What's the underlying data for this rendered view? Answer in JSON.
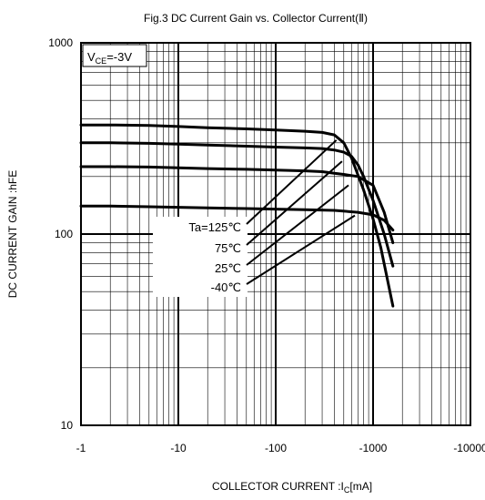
{
  "chart_data": {
    "type": "line",
    "title": "Fig.3 DC Current Gain vs. Collector  Current(Ⅱ)",
    "xlabel": {
      "main": "COLLECTOR CURRENT :I",
      "sub": "C",
      "unit": "[mA]"
    },
    "ylabel": "DC CURRENT GAIN :hFE",
    "x_scale": "log",
    "y_scale": "log",
    "xlim": [
      -1,
      -10000
    ],
    "ylim": [
      10,
      1000
    ],
    "grid": true,
    "x_ticks": [
      {
        "value": -1,
        "label": "-1"
      },
      {
        "value": -10,
        "label": "-10"
      },
      {
        "value": -100,
        "label": "-100"
      },
      {
        "value": -1000,
        "label": "-1000"
      },
      {
        "value": -10000,
        "label": "-10000"
      }
    ],
    "y_ticks": [
      {
        "value": 10,
        "label": "10"
      },
      {
        "value": 100,
        "label": "100"
      },
      {
        "value": 1000,
        "label": "1000"
      }
    ],
    "condition_box": {
      "main": "V",
      "sub": "CE",
      "rest": "=-3V"
    },
    "annotation": {
      "labels": [
        "Ta=125℃",
        "75℃",
        "25℃",
        "-40℃"
      ],
      "pointer_targets": [
        {
          "x": -420,
          "y": 310
        },
        {
          "x": -480,
          "y": 240
        },
        {
          "x": -560,
          "y": 180
        },
        {
          "x": -650,
          "y": 125
        }
      ]
    },
    "series": [
      {
        "name": "Ta=125℃",
        "x": [
          -1,
          -2,
          -5,
          -10,
          -20,
          -50,
          -100,
          -200,
          -300,
          -400,
          -500,
          -600,
          -800,
          -1000,
          -1200,
          -1600
        ],
        "y": [
          372,
          372,
          370,
          365,
          360,
          355,
          350,
          345,
          340,
          330,
          300,
          250,
          170,
          120,
          85,
          42
        ]
      },
      {
        "name": "75℃",
        "x": [
          -1,
          -2,
          -5,
          -10,
          -20,
          -50,
          -100,
          -200,
          -300,
          -400,
          -500,
          -600,
          -700,
          -800,
          -1000,
          -1300,
          -1600
        ],
        "y": [
          300,
          300,
          298,
          295,
          292,
          288,
          285,
          282,
          280,
          275,
          268,
          255,
          230,
          200,
          150,
          100,
          68
        ]
      },
      {
        "name": "25℃",
        "x": [
          -1,
          -2,
          -5,
          -10,
          -20,
          -50,
          -100,
          -200,
          -300,
          -400,
          -500,
          -700,
          -1000,
          -1300,
          -1600
        ],
        "y": [
          225,
          225,
          224,
          222,
          220,
          218,
          216,
          214,
          212,
          208,
          205,
          200,
          180,
          130,
          90
        ]
      },
      {
        "name": "-40℃",
        "x": [
          -1,
          -2,
          -5,
          -10,
          -20,
          -50,
          -100,
          -200,
          -400,
          -700,
          -1000,
          -1300,
          -1600
        ],
        "y": [
          140,
          140,
          139,
          138,
          137,
          136,
          135,
          134,
          133,
          130,
          126,
          118,
          105
        ]
      }
    ]
  }
}
